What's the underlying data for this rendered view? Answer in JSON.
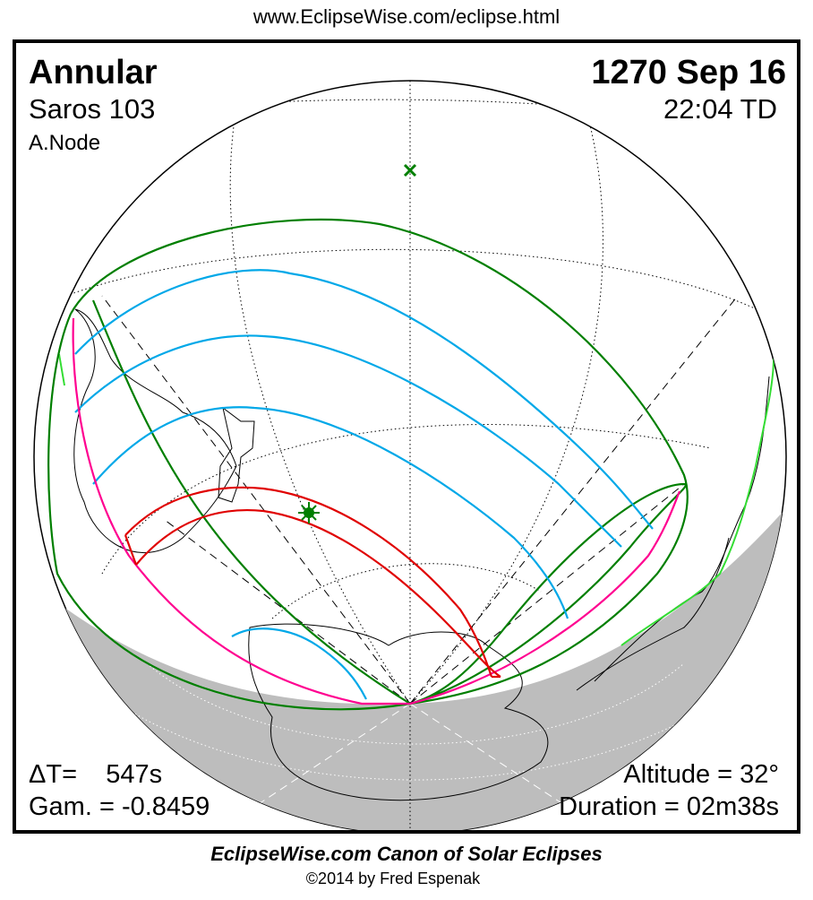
{
  "header": {
    "url": "www.EclipseWise.com/eclipse.html"
  },
  "eclipse": {
    "type": "Annular",
    "saros": "Saros 103",
    "node": "A.Node",
    "date": "1270 Sep 16",
    "time": "22:04 TD",
    "delta_t": "ΔT=    547s",
    "gamma": "Gam. = -0.8459",
    "altitude": "Altitude = 32°",
    "duration": "Duration = 02m38s"
  },
  "markers": {
    "greatest_eclipse": "star-icon",
    "subsolar_point": "x-icon"
  },
  "colors": {
    "central_path": "#e00000",
    "penumbral_limits": "#007f00",
    "magnitude_curves": "#00a8e8",
    "sunrise_sunset": "#ff0090",
    "night_shade": "#bdbdbd",
    "coast_green": "#33dd33"
  },
  "footer": {
    "title": "EclipseWise.com Canon of Solar Eclipses",
    "copyright": "©2014 by Fred Espenak"
  }
}
